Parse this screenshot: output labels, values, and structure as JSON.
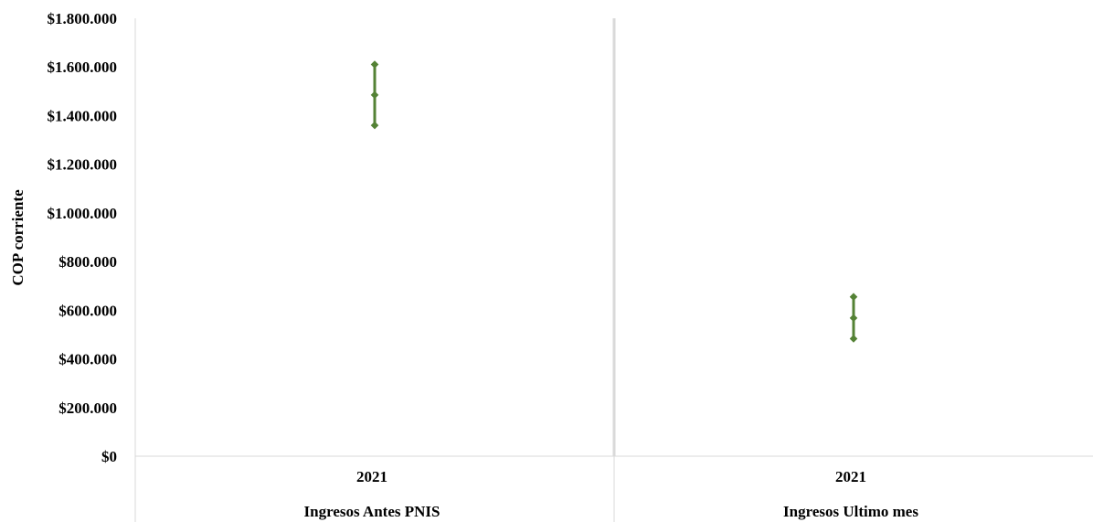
{
  "chart_data": {
    "type": "errorbar",
    "ylabel": "COP corriente",
    "ylim": [
      0,
      1800000
    ],
    "yticks": [
      0,
      200000,
      400000,
      600000,
      800000,
      1000000,
      1200000,
      1400000,
      1600000,
      1800000
    ],
    "ytick_labels": [
      "$0",
      "$200.000",
      "$400.000",
      "$600.000",
      "$800.000",
      "$1.000.000",
      "$1.200.000",
      "$1.400.000",
      "$1.600.000",
      "$1.800.000"
    ],
    "color": "#548235",
    "groups": [
      {
        "label": "Ingresos Antes PNIS",
        "year": "2021",
        "mean": 1485000,
        "lower": 1360000,
        "upper": 1610000
      },
      {
        "label": "Ingresos Ultimo mes",
        "year": "2021",
        "mean": 568000,
        "lower": 483000,
        "upper": 655000
      }
    ]
  }
}
